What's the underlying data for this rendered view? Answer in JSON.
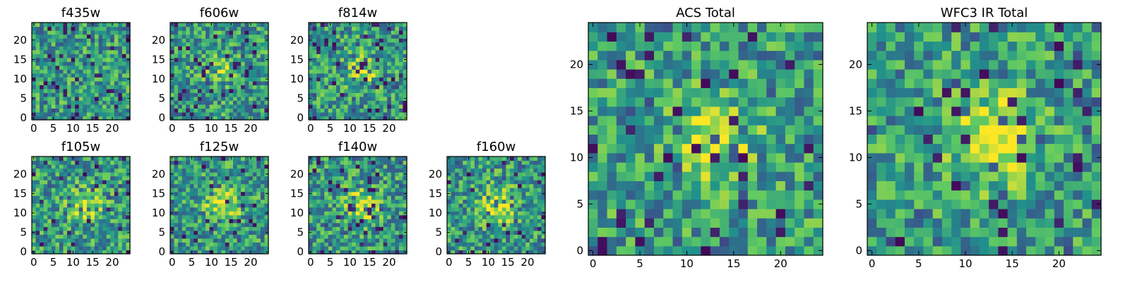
{
  "figure": {
    "colormap": "viridis",
    "colormap_stops": [
      "#440154",
      "#3b528b",
      "#21918c",
      "#5ec962",
      "#fde725"
    ],
    "frame_color": "#000000",
    "background": "#ffffff"
  },
  "chart_data": [
    {
      "type": "heatmap",
      "title": "f435w",
      "grid_size": 25,
      "seed": 11,
      "blob": 0.0,
      "speckle": 0.06,
      "xlim": [
        0,
        24
      ],
      "ylim": [
        0,
        24
      ],
      "xticks": [
        {
          "v": 0,
          "label": "0"
        },
        {
          "v": 5,
          "label": "5"
        },
        {
          "v": 10,
          "label": "10"
        },
        {
          "v": 15,
          "label": "15"
        },
        {
          "v": 20,
          "label": "20"
        }
      ],
      "yticks": [
        {
          "v": 0,
          "label": "0"
        },
        {
          "v": 5,
          "label": "5"
        },
        {
          "v": 10,
          "label": "10"
        },
        {
          "v": 15,
          "label": "15"
        },
        {
          "v": 20,
          "label": "20"
        }
      ]
    },
    {
      "type": "heatmap",
      "title": "f606w",
      "grid_size": 25,
      "seed": 23,
      "blob": 0.25,
      "speckle": 0.06,
      "xlim": [
        0,
        24
      ],
      "ylim": [
        0,
        24
      ],
      "xticks": [
        {
          "v": 0,
          "label": "0"
        },
        {
          "v": 5,
          "label": "5"
        },
        {
          "v": 10,
          "label": "10"
        },
        {
          "v": 15,
          "label": "15"
        },
        {
          "v": 20,
          "label": "20"
        }
      ],
      "yticks": [
        {
          "v": 0,
          "label": "0"
        },
        {
          "v": 5,
          "label": "5"
        },
        {
          "v": 10,
          "label": "10"
        },
        {
          "v": 15,
          "label": "15"
        },
        {
          "v": 20,
          "label": "20"
        }
      ]
    },
    {
      "type": "heatmap",
      "title": "f814w",
      "grid_size": 25,
      "seed": 37,
      "blob": 0.3,
      "speckle": 0.06,
      "xlim": [
        0,
        24
      ],
      "ylim": [
        0,
        24
      ],
      "xticks": [
        {
          "v": 0,
          "label": "0"
        },
        {
          "v": 5,
          "label": "5"
        },
        {
          "v": 10,
          "label": "10"
        },
        {
          "v": 15,
          "label": "15"
        },
        {
          "v": 20,
          "label": "20"
        }
      ],
      "yticks": [
        {
          "v": 0,
          "label": "0"
        },
        {
          "v": 5,
          "label": "5"
        },
        {
          "v": 10,
          "label": "10"
        },
        {
          "v": 15,
          "label": "15"
        },
        {
          "v": 20,
          "label": "20"
        }
      ]
    },
    {
      "type": "heatmap",
      "title": "f105w",
      "grid_size": 25,
      "seed": 41,
      "blob": 0.35,
      "speckle": 0.05,
      "xlim": [
        0,
        24
      ],
      "ylim": [
        0,
        24
      ],
      "xticks": [
        {
          "v": 0,
          "label": "0"
        },
        {
          "v": 5,
          "label": "5"
        },
        {
          "v": 10,
          "label": "10"
        },
        {
          "v": 15,
          "label": "15"
        },
        {
          "v": 20,
          "label": "20"
        }
      ],
      "yticks": [
        {
          "v": 0,
          "label": "0"
        },
        {
          "v": 5,
          "label": "5"
        },
        {
          "v": 10,
          "label": "10"
        },
        {
          "v": 15,
          "label": "15"
        },
        {
          "v": 20,
          "label": "20"
        }
      ]
    },
    {
      "type": "heatmap",
      "title": "f125w",
      "grid_size": 25,
      "seed": 53,
      "blob": 0.4,
      "speckle": 0.05,
      "xlim": [
        0,
        24
      ],
      "ylim": [
        0,
        24
      ],
      "xticks": [
        {
          "v": 0,
          "label": "0"
        },
        {
          "v": 5,
          "label": "5"
        },
        {
          "v": 10,
          "label": "10"
        },
        {
          "v": 15,
          "label": "15"
        },
        {
          "v": 20,
          "label": "20"
        }
      ],
      "yticks": [
        {
          "v": 0,
          "label": "0"
        },
        {
          "v": 5,
          "label": "5"
        },
        {
          "v": 10,
          "label": "10"
        },
        {
          "v": 15,
          "label": "15"
        },
        {
          "v": 20,
          "label": "20"
        }
      ]
    },
    {
      "type": "heatmap",
      "title": "f140w",
      "grid_size": 25,
      "seed": 67,
      "blob": 0.4,
      "speckle": 0.05,
      "xlim": [
        0,
        24
      ],
      "ylim": [
        0,
        24
      ],
      "xticks": [
        {
          "v": 0,
          "label": "0"
        },
        {
          "v": 5,
          "label": "5"
        },
        {
          "v": 10,
          "label": "10"
        },
        {
          "v": 15,
          "label": "15"
        },
        {
          "v": 20,
          "label": "20"
        }
      ],
      "yticks": [
        {
          "v": 0,
          "label": "0"
        },
        {
          "v": 5,
          "label": "5"
        },
        {
          "v": 10,
          "label": "10"
        },
        {
          "v": 15,
          "label": "15"
        },
        {
          "v": 20,
          "label": "20"
        }
      ]
    },
    {
      "type": "heatmap",
      "title": "f160w",
      "grid_size": 25,
      "seed": 79,
      "blob": 0.45,
      "speckle": 0.05,
      "xlim": [
        0,
        24
      ],
      "ylim": [
        0,
        24
      ],
      "xticks": [
        {
          "v": 0,
          "label": "0"
        },
        {
          "v": 5,
          "label": "5"
        },
        {
          "v": 10,
          "label": "10"
        },
        {
          "v": 15,
          "label": "15"
        },
        {
          "v": 20,
          "label": "20"
        }
      ],
      "yticks": [
        {
          "v": 0,
          "label": "0"
        },
        {
          "v": 5,
          "label": "5"
        },
        {
          "v": 10,
          "label": "10"
        },
        {
          "v": 15,
          "label": "15"
        },
        {
          "v": 20,
          "label": "20"
        }
      ]
    },
    {
      "type": "heatmap",
      "title": "ACS Total",
      "grid_size": 25,
      "seed": 97,
      "blob": 0.35,
      "speckle": 0.05,
      "xlim": [
        0,
        24
      ],
      "ylim": [
        0,
        24
      ],
      "xticks": [
        {
          "v": 0,
          "label": "0"
        },
        {
          "v": 5,
          "label": "5"
        },
        {
          "v": 10,
          "label": "10"
        },
        {
          "v": 15,
          "label": "15"
        },
        {
          "v": 20,
          "label": "20"
        }
      ],
      "yticks": [
        {
          "v": 0,
          "label": "0"
        },
        {
          "v": 5,
          "label": "5"
        },
        {
          "v": 10,
          "label": "10"
        },
        {
          "v": 15,
          "label": "15"
        },
        {
          "v": 20,
          "label": "20"
        }
      ]
    },
    {
      "type": "heatmap",
      "title": "WFC3 IR Total",
      "grid_size": 25,
      "seed": 131,
      "blob": 0.55,
      "speckle": 0.04,
      "xlim": [
        0,
        24
      ],
      "ylim": [
        0,
        24
      ],
      "xticks": [
        {
          "v": 0,
          "label": "0"
        },
        {
          "v": 5,
          "label": "5"
        },
        {
          "v": 10,
          "label": "10"
        },
        {
          "v": 15,
          "label": "15"
        },
        {
          "v": 20,
          "label": "20"
        }
      ],
      "yticks": [
        {
          "v": 0,
          "label": "0"
        },
        {
          "v": 5,
          "label": "5"
        },
        {
          "v": 10,
          "label": "10"
        },
        {
          "v": 15,
          "label": "15"
        },
        {
          "v": 20,
          "label": "20"
        }
      ]
    }
  ]
}
